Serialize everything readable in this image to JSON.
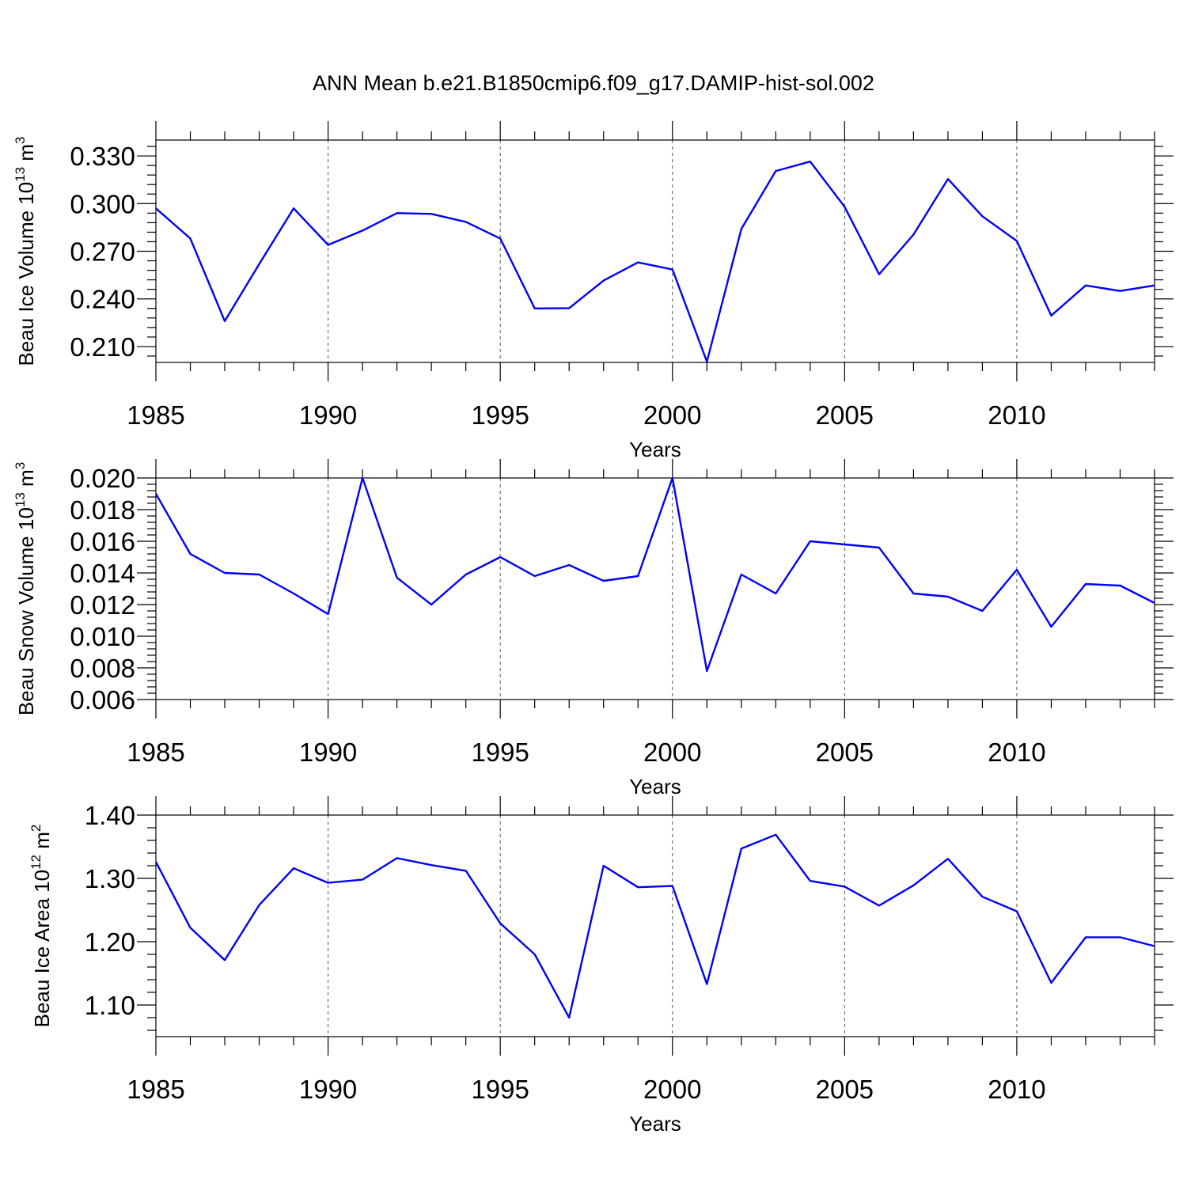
{
  "chart_data": [
    {
      "type": "line",
      "title": "ANN Mean b.e21.B1850cmip6.f09_g17.DAMIP-hist-sol.002",
      "xlabel": "Years",
      "ylabel": {
        "base": "Beau Ice Volume 10",
        "exp": "13",
        "unit": " m",
        "unit_exp": "3"
      },
      "xlim": [
        1985,
        2014
      ],
      "ylim": [
        0.2,
        0.34
      ],
      "xticks": [
        1985,
        1990,
        1995,
        2000,
        2005,
        2010
      ],
      "xtick_labels": [
        "1985",
        "1990",
        "1995",
        "2000",
        "2005",
        "2010"
      ],
      "yticks": [
        0.21,
        0.24,
        0.27,
        0.3,
        0.33
      ],
      "ytick_labels": [
        "0.210",
        "0.240",
        "0.270",
        "0.300",
        "0.330"
      ],
      "grid": "vertical dashed at major x ticks",
      "line_color": "#0000ff",
      "x": [
        1985,
        1986,
        1987,
        1988,
        1989,
        1990,
        1991,
        1992,
        1993,
        1994,
        1995,
        1996,
        1997,
        1998,
        1999,
        2000,
        2001,
        2002,
        2003,
        2004,
        2005,
        2006,
        2007,
        2008,
        2009,
        2010,
        2011,
        2012,
        2013,
        2014
      ],
      "series": [
        {
          "name": "Beau Ice Volume",
          "values": [
            0.297,
            0.278,
            0.226,
            0.262,
            0.297,
            0.274,
            0.283,
            0.294,
            0.2935,
            0.2885,
            0.278,
            0.234,
            0.2342,
            0.2515,
            0.263,
            0.2585,
            0.2005,
            0.284,
            0.3205,
            0.3265,
            0.298,
            0.2555,
            0.2805,
            0.3155,
            0.292,
            0.2765,
            0.2295,
            0.2485,
            0.245,
            0.2485
          ]
        }
      ]
    },
    {
      "type": "line",
      "xlabel": "Years",
      "ylabel": {
        "base": "Beau Snow Volume 10",
        "exp": "13",
        "unit": " m",
        "unit_exp": "3"
      },
      "xlim": [
        1985,
        2014
      ],
      "ylim": [
        0.006,
        0.02
      ],
      "xticks": [
        1985,
        1990,
        1995,
        2000,
        2005,
        2010
      ],
      "xtick_labels": [
        "1985",
        "1990",
        "1995",
        "2000",
        "2005",
        "2010"
      ],
      "yticks": [
        0.006,
        0.008,
        0.01,
        0.012,
        0.014,
        0.016,
        0.018,
        0.02
      ],
      "ytick_labels": [
        "0.006",
        "0.008",
        "0.010",
        "0.012",
        "0.014",
        "0.016",
        "0.018",
        "0.020"
      ],
      "grid": "vertical dashed at major x ticks",
      "line_color": "#0000ff",
      "x": [
        1985,
        1986,
        1987,
        1988,
        1989,
        1990,
        1991,
        1992,
        1993,
        1994,
        1995,
        1996,
        1997,
        1998,
        1999,
        2000,
        2001,
        2002,
        2003,
        2004,
        2005,
        2006,
        2007,
        2008,
        2009,
        2010,
        2011,
        2012,
        2013,
        2014
      ],
      "series": [
        {
          "name": "Beau Snow Volume",
          "values": [
            0.019,
            0.0152,
            0.014,
            0.0139,
            0.0127,
            0.0114,
            0.02,
            0.0137,
            0.012,
            0.0139,
            0.015,
            0.0138,
            0.0145,
            0.0135,
            0.0138,
            0.02,
            0.0078,
            0.0139,
            0.0127,
            0.016,
            0.0158,
            0.0156,
            0.0127,
            0.0125,
            0.0116,
            0.0142,
            0.0106,
            0.0133,
            0.0132,
            0.0121
          ]
        }
      ]
    },
    {
      "type": "line",
      "xlabel": "Years",
      "ylabel": {
        "base": "Beau Ice Area 10",
        "exp": "12",
        "unit": " m",
        "unit_exp": "2"
      },
      "xlim": [
        1985,
        2014
      ],
      "ylim": [
        1.05,
        1.4
      ],
      "xticks": [
        1985,
        1990,
        1995,
        2000,
        2005,
        2010
      ],
      "xtick_labels": [
        "1985",
        "1990",
        "1995",
        "2000",
        "2005",
        "2010"
      ],
      "yticks": [
        1.1,
        1.2,
        1.3,
        1.4
      ],
      "ytick_labels": [
        "1.10",
        "1.20",
        "1.30",
        "1.40"
      ],
      "grid": "vertical dashed at major x ticks",
      "line_color": "#0000ff",
      "x": [
        1985,
        1986,
        1987,
        1988,
        1989,
        1990,
        1991,
        1992,
        1993,
        1994,
        1995,
        1996,
        1997,
        1998,
        1999,
        2000,
        2001,
        2002,
        2003,
        2004,
        2005,
        2006,
        2007,
        2008,
        2009,
        2010,
        2011,
        2012,
        2013,
        2014
      ],
      "series": [
        {
          "name": "Beau Ice Area",
          "values": [
            1.326,
            1.222,
            1.171,
            1.258,
            1.316,
            1.293,
            1.298,
            1.332,
            1.321,
            1.312,
            1.229,
            1.18,
            1.08,
            1.32,
            1.286,
            1.288,
            1.133,
            1.347,
            1.369,
            1.296,
            1.287,
            1.257,
            1.289,
            1.331,
            1.271,
            1.248,
            1.135,
            1.207,
            1.207,
            1.193
          ]
        }
      ]
    }
  ]
}
